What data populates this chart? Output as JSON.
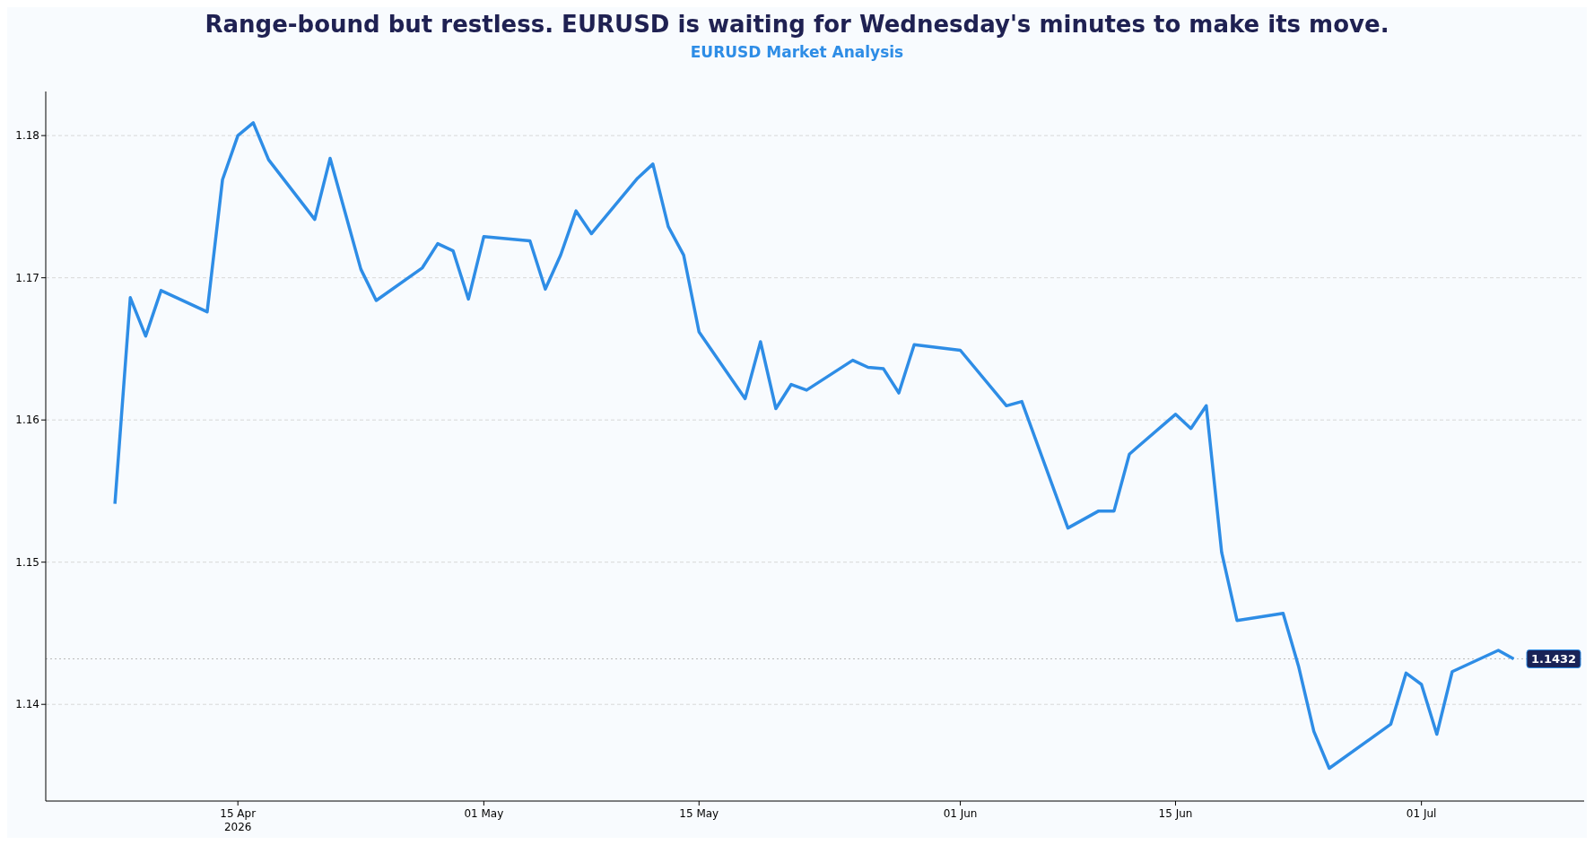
{
  "chart_data": {
    "type": "line",
    "title": "Range-bound but restless. EURUSD is waiting for Wednesday's minutes to make its move.",
    "subtitle": "EURUSD Market Analysis",
    "x": [
      "2026-04-07",
      "2026-04-08",
      "2026-04-09",
      "2026-04-10",
      "2026-04-13",
      "2026-04-14",
      "2026-04-15",
      "2026-04-16",
      "2026-04-17",
      "2026-04-20",
      "2026-04-21",
      "2026-04-23",
      "2026-04-24",
      "2026-04-27",
      "2026-04-28",
      "2026-04-29",
      "2026-04-30",
      "2026-05-01",
      "2026-05-04",
      "2026-05-05",
      "2026-05-06",
      "2026-05-07",
      "2026-05-08",
      "2026-05-11",
      "2026-05-12",
      "2026-05-13",
      "2026-05-14",
      "2026-05-15",
      "2026-05-18",
      "2026-05-19",
      "2026-05-20",
      "2026-05-21",
      "2026-05-22",
      "2026-05-25",
      "2026-05-26",
      "2026-05-27",
      "2026-05-28",
      "2026-05-29",
      "2026-06-01",
      "2026-06-04",
      "2026-06-05",
      "2026-06-08",
      "2026-06-10",
      "2026-06-11",
      "2026-06-12",
      "2026-06-15",
      "2026-06-16",
      "2026-06-17",
      "2026-06-18",
      "2026-06-19",
      "2026-06-22",
      "2026-06-23",
      "2026-06-24",
      "2026-06-25",
      "2026-06-29",
      "2026-06-30",
      "2026-07-01",
      "2026-07-02",
      "2026-07-03",
      "2026-07-06",
      "2026-07-07"
    ],
    "series": [
      {
        "color": "#2e8de6",
        "values": [
          1.1541,
          1.1686,
          1.1659,
          1.1691,
          1.1676,
          1.1769,
          1.18,
          1.1809,
          1.1783,
          1.1741,
          1.1784,
          1.1706,
          1.1684,
          1.1707,
          1.1724,
          1.1719,
          1.1685,
          1.1729,
          1.1726,
          1.1692,
          1.1716,
          1.1747,
          1.1731,
          1.177,
          1.178,
          1.1736,
          1.1716,
          1.1662,
          1.1615,
          1.1655,
          1.1608,
          1.1625,
          1.1621,
          1.1642,
          1.1637,
          1.1636,
          1.1619,
          1.1653,
          1.1649,
          1.161,
          1.1613,
          1.1524,
          1.1536,
          1.1536,
          1.1576,
          1.1604,
          1.1594,
          1.161,
          1.1507,
          1.1459,
          1.1464,
          1.1427,
          1.1381,
          1.1355,
          1.1386,
          1.1422,
          1.1414,
          1.1379,
          1.1423,
          1.1438,
          1.1432
        ]
      }
    ],
    "xlim": [
      "2026-04-02T12:00",
      "2026-07-11T14:00"
    ],
    "xticks": [
      {
        "value": "2026-04-15",
        "label": "15 Apr\n2026"
      },
      {
        "value": "2026-05-01",
        "label": "01 May"
      },
      {
        "value": "2026-05-15",
        "label": "15 May"
      },
      {
        "value": "2026-06-01",
        "label": "01 Jun"
      },
      {
        "value": "2026-06-15",
        "label": "15 Jun"
      },
      {
        "value": "2026-07-01",
        "label": "01 Jul"
      }
    ],
    "ylim": [
      1.1332,
      1.1831
    ],
    "yticks": [
      1.14,
      1.15,
      1.16,
      1.17,
      1.18
    ],
    "ref_lines": [
      {
        "axis": "y",
        "value": 1.1432,
        "label": "1.1432",
        "color": "#bbbbbb",
        "line_style": "dotted"
      }
    ],
    "grid": "y",
    "legend": false,
    "marker": "none",
    "line_style": "solid"
  }
}
